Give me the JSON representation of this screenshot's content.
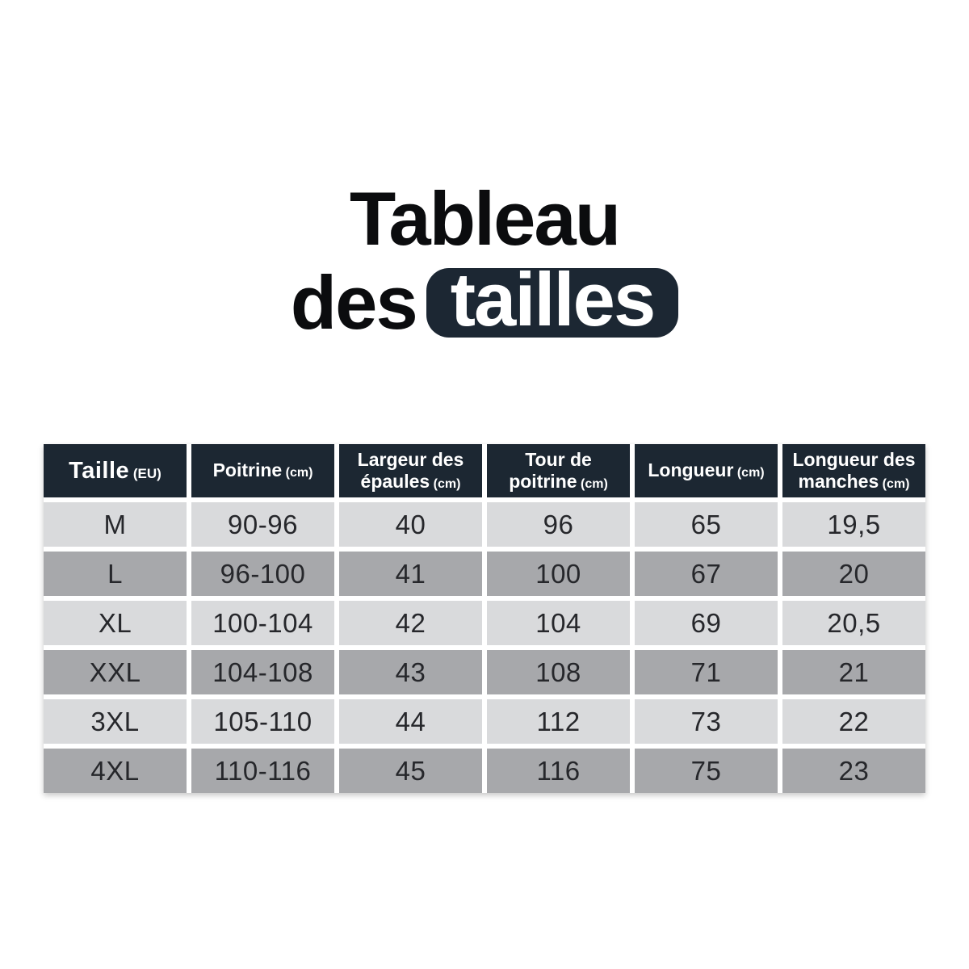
{
  "title": {
    "line1": "Tableau",
    "line2_word": "des",
    "line2_badge": "tailles"
  },
  "colors": {
    "header_bg": "#1c2732",
    "badge_bg": "#1c2733",
    "row_light": "#d9dadc",
    "row_dark": "#a7a8ab",
    "title_text": "#0b0c0e",
    "header_text": "#ffffff",
    "cell_text": "#26272b"
  },
  "table": {
    "columns": [
      {
        "key": "taille",
        "label": "Taille",
        "unit": "(EU)"
      },
      {
        "key": "poitrine",
        "label": "Poitrine",
        "unit": "(cm)"
      },
      {
        "key": "largeur-epaules",
        "label": "Largeur des épaules",
        "unit": "(cm)"
      },
      {
        "key": "tour-poitrine",
        "label": "Tour de poitrine",
        "unit": "(cm)"
      },
      {
        "key": "longueur",
        "label": "Longueur",
        "unit": "(cm)"
      },
      {
        "key": "longueur-manches",
        "label": "Longueur des manches",
        "unit": "(cm)"
      }
    ],
    "rows": [
      [
        "M",
        "90-96",
        "40",
        "96",
        "65",
        "19,5"
      ],
      [
        "L",
        "96-100",
        "41",
        "100",
        "67",
        "20"
      ],
      [
        "XL",
        "100-104",
        "42",
        "104",
        "69",
        "20,5"
      ],
      [
        "XXL",
        "104-108",
        "43",
        "108",
        "71",
        "21"
      ],
      [
        "3XL",
        "105-110",
        "44",
        "112",
        "73",
        "22"
      ],
      [
        "4XL",
        "110-116",
        "45",
        "116",
        "75",
        "23"
      ]
    ]
  },
  "chart_data": {
    "type": "table",
    "title": "Tableau des tailles",
    "columns": [
      "Taille (EU)",
      "Poitrine (cm)",
      "Largeur des épaules (cm)",
      "Tour de poitrine (cm)",
      "Longueur (cm)",
      "Longueur des manches (cm)"
    ],
    "rows": [
      [
        "M",
        "90-96",
        "40",
        "96",
        "65",
        "19,5"
      ],
      [
        "L",
        "96-100",
        "41",
        "100",
        "67",
        "20"
      ],
      [
        "XL",
        "100-104",
        "42",
        "104",
        "69",
        "20,5"
      ],
      [
        "XXL",
        "104-108",
        "43",
        "108",
        "71",
        "21"
      ],
      [
        "3XL",
        "105-110",
        "44",
        "112",
        "73",
        "22"
      ],
      [
        "4XL",
        "110-116",
        "45",
        "116",
        "75",
        "23"
      ]
    ],
    "layout": "header row dark navy, data rows alternate light gray / dark gray, white gutters between all cells"
  }
}
